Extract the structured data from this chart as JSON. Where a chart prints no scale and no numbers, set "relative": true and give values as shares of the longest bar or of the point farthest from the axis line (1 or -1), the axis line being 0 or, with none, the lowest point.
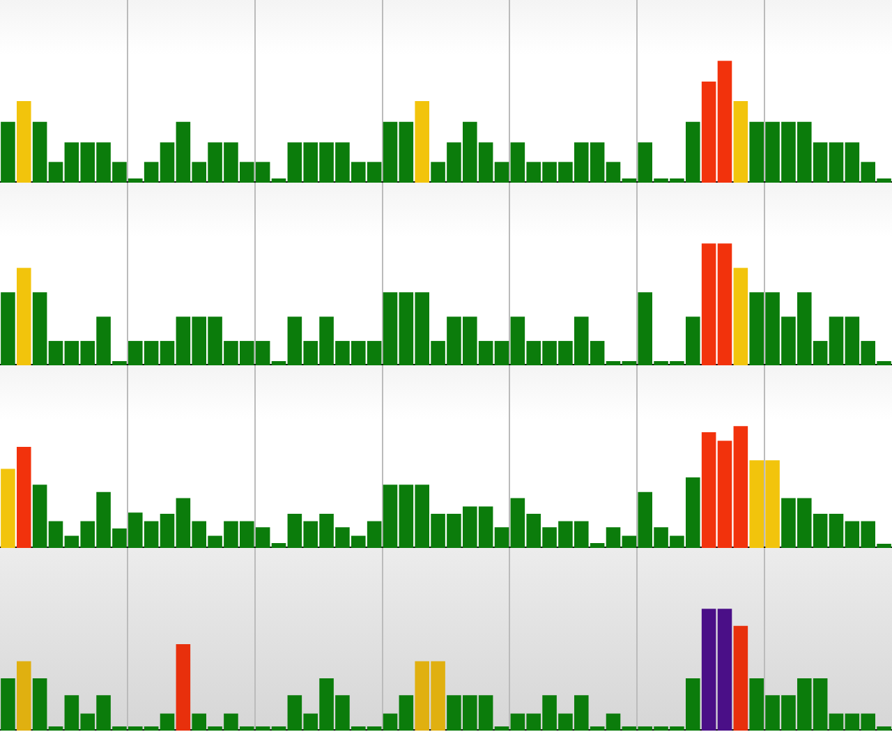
{
  "chart_data": [
    {
      "type": "bar",
      "relative": true,
      "grid": "x",
      "categories": [
        null,
        null,
        null,
        null,
        null,
        null,
        null,
        null,
        null,
        null,
        null,
        null,
        null,
        null,
        null,
        null,
        null,
        null,
        null,
        null,
        null,
        null,
        null,
        null,
        null,
        null,
        null,
        null,
        null,
        null,
        null,
        null,
        null,
        null,
        null,
        null,
        null,
        null,
        null,
        null,
        null,
        null,
        null,
        null,
        null,
        null,
        null,
        null,
        null,
        null,
        null,
        null,
        null,
        null,
        null,
        null
      ],
      "values": [
        0.5,
        0.67,
        0.5,
        0.17,
        0.33,
        0.33,
        0.33,
        0.17,
        0,
        0.17,
        0.33,
        0.5,
        0.17,
        0.33,
        0.33,
        0.17,
        0.17,
        0,
        0.33,
        0.33,
        0.33,
        0.33,
        0.17,
        0.17,
        0.5,
        0.5,
        0.67,
        0.17,
        0.33,
        0.5,
        0.33,
        0.17,
        0.33,
        0.17,
        0.17,
        0.17,
        0.33,
        0.33,
        0.17,
        0,
        0.33,
        0,
        0,
        0.5,
        0.83,
        1,
        0.67,
        0.5,
        0.5,
        0.5,
        0.5,
        0.33,
        0.33,
        0.33,
        0.17,
        0
      ],
      "colors": [
        "#0b7c0b",
        "#f2c40c",
        "#0b7c0b",
        "#0b7c0b",
        "#0b7c0b",
        "#0b7c0b",
        "#0b7c0b",
        "#0b7c0b",
        "#0b7c0b",
        "#0b7c0b",
        "#0b7c0b",
        "#0b7c0b",
        "#0b7c0b",
        "#0b7c0b",
        "#0b7c0b",
        "#0b7c0b",
        "#0b7c0b",
        "#0b7c0b",
        "#0b7c0b",
        "#0b7c0b",
        "#0b7c0b",
        "#0b7c0b",
        "#0b7c0b",
        "#0b7c0b",
        "#0b7c0b",
        "#0b7c0b",
        "#f2c40c",
        "#0b7c0b",
        "#0b7c0b",
        "#0b7c0b",
        "#0b7c0b",
        "#0b7c0b",
        "#0b7c0b",
        "#0b7c0b",
        "#0b7c0b",
        "#0b7c0b",
        "#0b7c0b",
        "#0b7c0b",
        "#0b7c0b",
        "#0b7c0b",
        "#0b7c0b",
        "#0b7c0b",
        "#0b7c0b",
        "#0b7c0b",
        "#f2320c",
        "#f2320c",
        "#f2c40c",
        "#0b7c0b",
        "#0b7c0b",
        "#0b7c0b",
        "#0b7c0b",
        "#0b7c0b",
        "#0b7c0b",
        "#0b7c0b",
        "#0b7c0b",
        "#0b7c0b"
      ]
    },
    {
      "type": "bar",
      "relative": true,
      "grid": "x",
      "categories": [
        null,
        null,
        null,
        null,
        null,
        null,
        null,
        null,
        null,
        null,
        null,
        null,
        null,
        null,
        null,
        null,
        null,
        null,
        null,
        null,
        null,
        null,
        null,
        null,
        null,
        null,
        null,
        null,
        null,
        null,
        null,
        null,
        null,
        null,
        null,
        null,
        null,
        null,
        null,
        null,
        null,
        null,
        null,
        null,
        null,
        null,
        null,
        null,
        null,
        null,
        null,
        null,
        null,
        null,
        null,
        null
      ],
      "values": [
        0.6,
        0.8,
        0.6,
        0.2,
        0.2,
        0.2,
        0.4,
        0,
        0.2,
        0.2,
        0.2,
        0.4,
        0.4,
        0.4,
        0.2,
        0.2,
        0.2,
        0,
        0.4,
        0.2,
        0.4,
        0.2,
        0.2,
        0.2,
        0.6,
        0.6,
        0.6,
        0.2,
        0.4,
        0.4,
        0.2,
        0.2,
        0.4,
        0.2,
        0.2,
        0.2,
        0.4,
        0.2,
        0,
        0,
        0.6,
        0,
        0,
        0.4,
        1,
        1,
        0.8,
        0.6,
        0.6,
        0.4,
        0.6,
        0.2,
        0.4,
        0.4,
        0.2,
        0
      ],
      "colors": [
        "#0b7c0b",
        "#f2c40c",
        "#0b7c0b",
        "#0b7c0b",
        "#0b7c0b",
        "#0b7c0b",
        "#0b7c0b",
        "#0b7c0b",
        "#0b7c0b",
        "#0b7c0b",
        "#0b7c0b",
        "#0b7c0b",
        "#0b7c0b",
        "#0b7c0b",
        "#0b7c0b",
        "#0b7c0b",
        "#0b7c0b",
        "#0b7c0b",
        "#0b7c0b",
        "#0b7c0b",
        "#0b7c0b",
        "#0b7c0b",
        "#0b7c0b",
        "#0b7c0b",
        "#0b7c0b",
        "#0b7c0b",
        "#0b7c0b",
        "#0b7c0b",
        "#0b7c0b",
        "#0b7c0b",
        "#0b7c0b",
        "#0b7c0b",
        "#0b7c0b",
        "#0b7c0b",
        "#0b7c0b",
        "#0b7c0b",
        "#0b7c0b",
        "#0b7c0b",
        "#0b7c0b",
        "#0b7c0b",
        "#0b7c0b",
        "#0b7c0b",
        "#0b7c0b",
        "#0b7c0b",
        "#f2320c",
        "#f2320c",
        "#f2c40c",
        "#0b7c0b",
        "#0b7c0b",
        "#0b7c0b",
        "#0b7c0b",
        "#0b7c0b",
        "#0b7c0b",
        "#0b7c0b",
        "#0b7c0b",
        "#0b7c0b"
      ]
    },
    {
      "type": "bar",
      "relative": true,
      "grid": "x",
      "categories": [
        null,
        null,
        null,
        null,
        null,
        null,
        null,
        null,
        null,
        null,
        null,
        null,
        null,
        null,
        null,
        null,
        null,
        null,
        null,
        null,
        null,
        null,
        null,
        null,
        null,
        null,
        null,
        null,
        null,
        null,
        null,
        null,
        null,
        null,
        null,
        null,
        null,
        null,
        null,
        null,
        null,
        null,
        null,
        null,
        null,
        null,
        null,
        null,
        null,
        null,
        null,
        null,
        null,
        null,
        null,
        null
      ],
      "values": [
        0.65,
        0.83,
        0.52,
        0.22,
        0.1,
        0.22,
        0.46,
        0.16,
        0.29,
        0.22,
        0.28,
        0.41,
        0.22,
        0.1,
        0.22,
        0.22,
        0.17,
        0.04,
        0.28,
        0.22,
        0.28,
        0.17,
        0.1,
        0.22,
        0.52,
        0.52,
        0.52,
        0.28,
        0.28,
        0.34,
        0.34,
        0.17,
        0.41,
        0.28,
        0.17,
        0.22,
        0.22,
        0.04,
        0.17,
        0.1,
        0.46,
        0.17,
        0.1,
        0.58,
        0.95,
        0.88,
        1,
        0.72,
        0.72,
        0.41,
        0.41,
        0.28,
        0.28,
        0.22,
        0.22,
        0
      ],
      "colors": [
        "#f2c40c",
        "#f2320c",
        "#0b7c0b",
        "#0b7c0b",
        "#0b7c0b",
        "#0b7c0b",
        "#0b7c0b",
        "#0b7c0b",
        "#0b7c0b",
        "#0b7c0b",
        "#0b7c0b",
        "#0b7c0b",
        "#0b7c0b",
        "#0b7c0b",
        "#0b7c0b",
        "#0b7c0b",
        "#0b7c0b",
        "#0b7c0b",
        "#0b7c0b",
        "#0b7c0b",
        "#0b7c0b",
        "#0b7c0b",
        "#0b7c0b",
        "#0b7c0b",
        "#0b7c0b",
        "#0b7c0b",
        "#0b7c0b",
        "#0b7c0b",
        "#0b7c0b",
        "#0b7c0b",
        "#0b7c0b",
        "#0b7c0b",
        "#0b7c0b",
        "#0b7c0b",
        "#0b7c0b",
        "#0b7c0b",
        "#0b7c0b",
        "#0b7c0b",
        "#0b7c0b",
        "#0b7c0b",
        "#0b7c0b",
        "#0b7c0b",
        "#0b7c0b",
        "#0b7c0b",
        "#f2320c",
        "#f2320c",
        "#f2320c",
        "#f2c40c",
        "#f2c40c",
        "#0b7c0b",
        "#0b7c0b",
        "#0b7c0b",
        "#0b7c0b",
        "#0b7c0b",
        "#0b7c0b",
        "#0b7c0b"
      ]
    },
    {
      "type": "bar",
      "relative": true,
      "grid": "x",
      "categories": [
        null,
        null,
        null,
        null,
        null,
        null,
        null,
        null,
        null,
        null,
        null,
        null,
        null,
        null,
        null,
        null,
        null,
        null,
        null,
        null,
        null,
        null,
        null,
        null,
        null,
        null,
        null,
        null,
        null,
        null,
        null,
        null,
        null,
        null,
        null,
        null,
        null,
        null,
        null,
        null,
        null,
        null,
        null,
        null,
        null,
        null,
        null,
        null,
        null,
        null,
        null,
        null,
        null,
        null,
        null,
        null
      ],
      "values": [
        0.43,
        0.57,
        0.43,
        0,
        0.29,
        0.14,
        0.29,
        0,
        0,
        0,
        0.14,
        0.71,
        0.14,
        0,
        0.14,
        0,
        0,
        0,
        0.29,
        0.14,
        0.43,
        0.29,
        0,
        0,
        0.14,
        0.29,
        0.57,
        0.57,
        0.29,
        0.29,
        0.29,
        0,
        0.14,
        0.14,
        0.29,
        0.14,
        0.29,
        0,
        0.14,
        0,
        0,
        0,
        0,
        0.43,
        1,
        1,
        0.86,
        0.43,
        0.29,
        0.29,
        0.43,
        0.43,
        0.14,
        0.14,
        0.14,
        0
      ],
      "colors": [
        "#0b7c0b",
        "#e0b010",
        "#0b7c0b",
        "#0b7c0b",
        "#0b7c0b",
        "#0b7c0b",
        "#0b7c0b",
        "#0b7c0b",
        "#0b7c0b",
        "#0b7c0b",
        "#0b7c0b",
        "#e8300c",
        "#0b7c0b",
        "#0b7c0b",
        "#0b7c0b",
        "#0b7c0b",
        "#0b7c0b",
        "#0b7c0b",
        "#0b7c0b",
        "#0b7c0b",
        "#0b7c0b",
        "#0b7c0b",
        "#0b7c0b",
        "#0b7c0b",
        "#0b7c0b",
        "#0b7c0b",
        "#e0b010",
        "#e0b010",
        "#0b7c0b",
        "#0b7c0b",
        "#0b7c0b",
        "#0b7c0b",
        "#0b7c0b",
        "#0b7c0b",
        "#0b7c0b",
        "#0b7c0b",
        "#0b7c0b",
        "#0b7c0b",
        "#0b7c0b",
        "#0b7c0b",
        "#0b7c0b",
        "#0b7c0b",
        "#0b7c0b",
        "#0b7c0b",
        "#4a0f87",
        "#4a0f87",
        "#e8300c",
        "#0b7c0b",
        "#0b7c0b",
        "#0b7c0b",
        "#0b7c0b",
        "#0b7c0b",
        "#0b7c0b",
        "#0b7c0b",
        "#0b7c0b",
        "#0b7c0b"
      ]
    }
  ]
}
